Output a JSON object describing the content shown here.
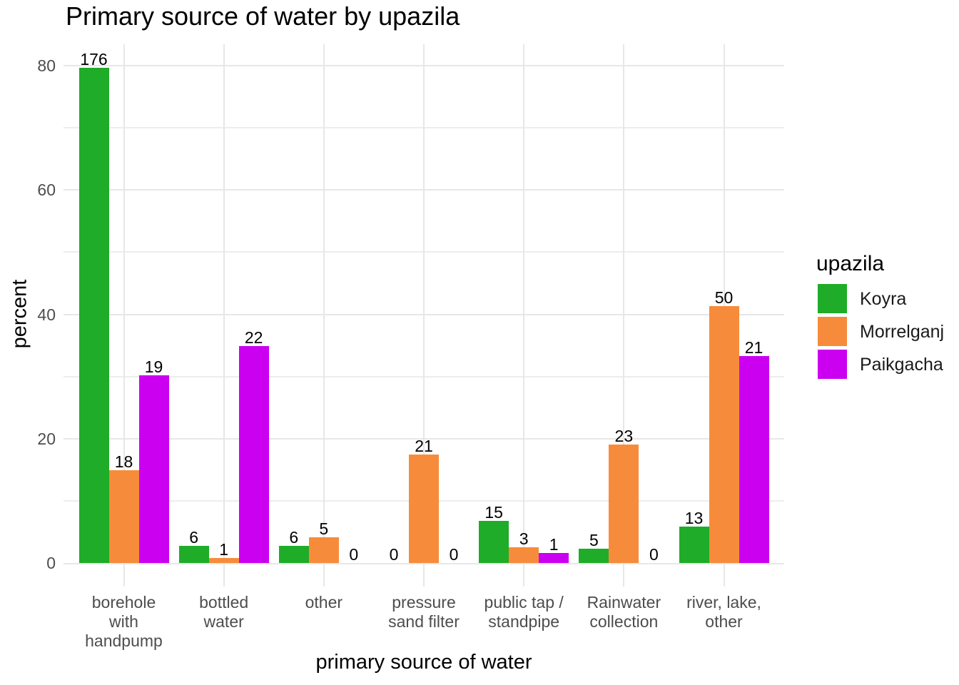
{
  "title": "Primary source of water by upazila",
  "chart_data": {
    "type": "bar",
    "title": "Primary source of water by upazila",
    "xlabel": "primary source of water",
    "ylabel": "percent",
    "ylim": [
      0,
      80
    ],
    "yticks": [
      0,
      20,
      40,
      60,
      80
    ],
    "grid": "horizontal major at 0/20/40/60/80, horizontal minor at 10/30/50/70, vertical major at category centers",
    "legend_title": "upazila",
    "legend_position": "right",
    "categories": [
      "borehole\nwith\nhandpump",
      "bottled\nwater",
      "other",
      "pressure\nsand filter",
      "public tap /\nstandpipe",
      "Rainwater\ncollection",
      "river, lake,\nother"
    ],
    "bar_label_meaning": "counts shown above bars; bar heights are percents",
    "series": [
      {
        "name": "Koyra",
        "color": "#1fac28",
        "counts": [
          176,
          6,
          6,
          0,
          15,
          5,
          13
        ],
        "percent": [
          79.6,
          2.7,
          2.7,
          0,
          6.8,
          2.3,
          5.9
        ]
      },
      {
        "name": "Morrelganj",
        "color": "#f68c3b",
        "counts": [
          18,
          1,
          5,
          21,
          3,
          23,
          50
        ],
        "percent": [
          14.9,
          0.8,
          4.1,
          17.4,
          2.5,
          19.0,
          41.3
        ]
      },
      {
        "name": "Paikgacha",
        "color": "#cc00f0",
        "counts": [
          19,
          22,
          0,
          0,
          1,
          0,
          21
        ],
        "percent": [
          30.2,
          34.9,
          0,
          0,
          1.6,
          0,
          33.3
        ]
      }
    ],
    "colors": {
      "grid_major": "#e7e7e7",
      "grid_minor": "#ededed",
      "axis_text": "#4d4d4d",
      "text": "#000000"
    }
  }
}
